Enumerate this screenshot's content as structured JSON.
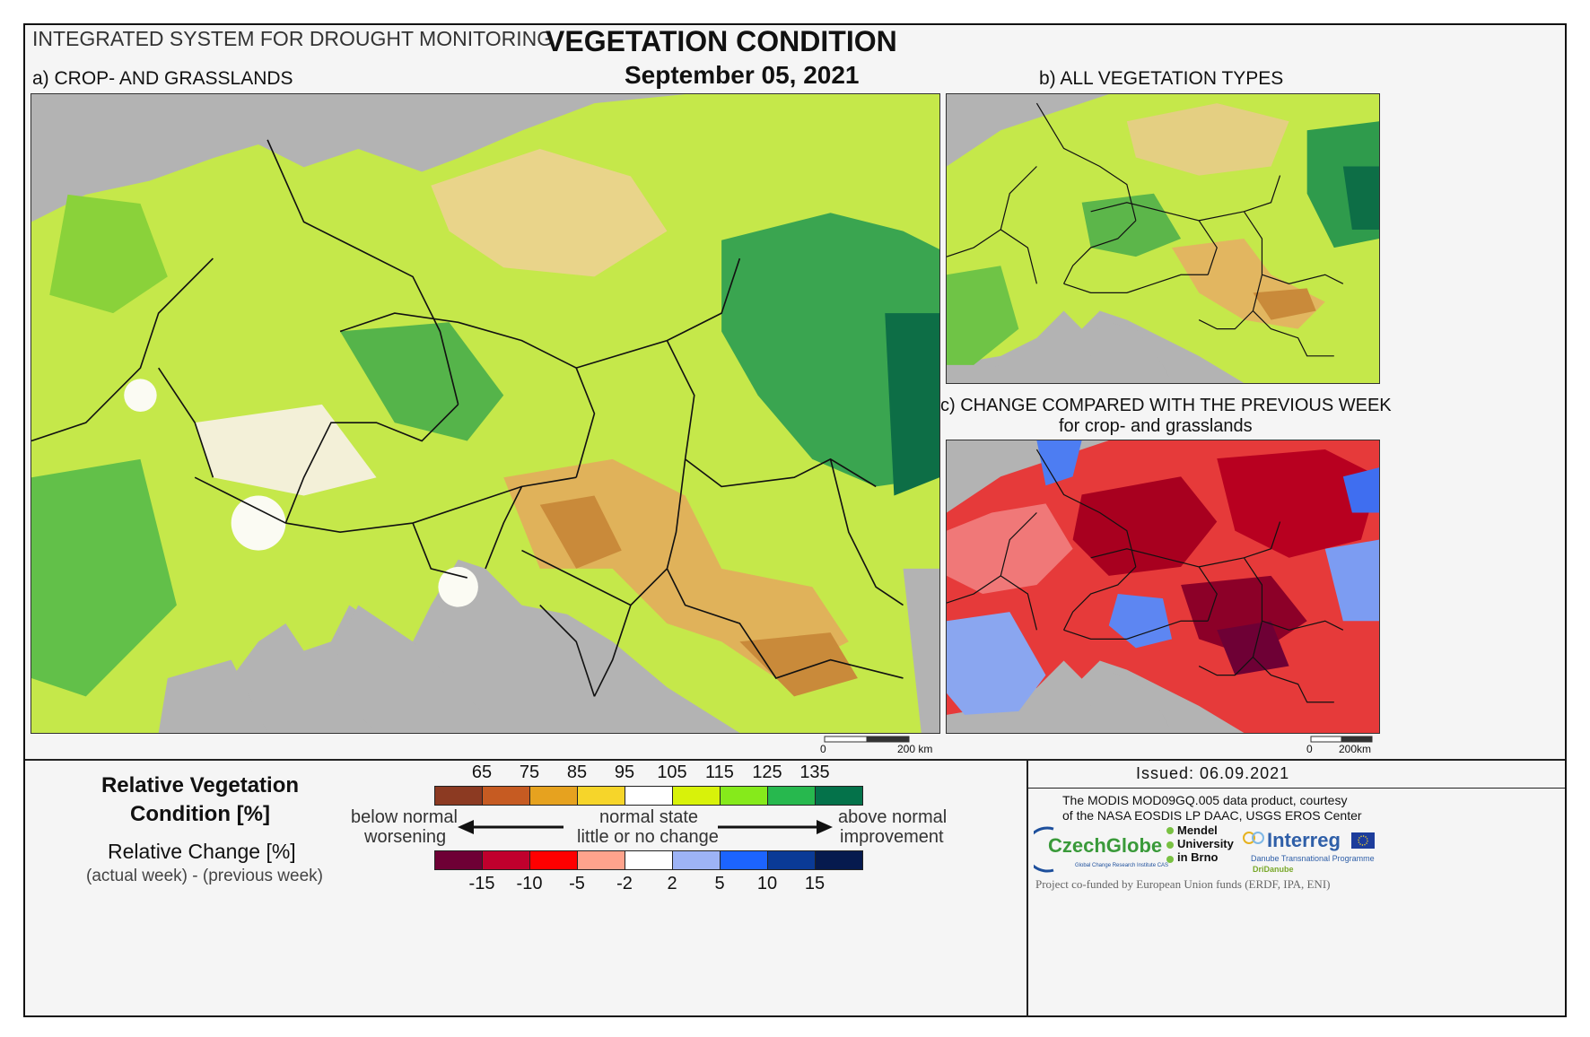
{
  "header": {
    "system": "INTEGRATED SYSTEM FOR DROUGHT MONITORING",
    "title": "VEGETATION CONDITION",
    "date": "September 05, 2021"
  },
  "panels": {
    "a": "a) CROP- AND GRASSLANDS",
    "b": "b) ALL VEGETATION TYPES",
    "c_line1": "c) CHANGE COMPARED WITH THE PREVIOUS WEEK",
    "c_line2": "for crop- and grasslands"
  },
  "scalebar": {
    "main_start": "0",
    "main_end": "200 km",
    "small_start": "0",
    "small_end": "200km"
  },
  "legend": {
    "rvc_title": "Relative Vegetation Condition [%]",
    "rc_title": "Relative Change [%]",
    "rc_subtitle": "(actual week) - (previous week)",
    "left_line1": "below normal",
    "left_line2": "worsening",
    "center_line1": "normal state",
    "center_line2": "little or no change",
    "right_line1": "above normal",
    "right_line2": "improvement",
    "condition_ticks": [
      "65",
      "75",
      "85",
      "95",
      "105",
      "115",
      "125",
      "135"
    ],
    "condition_colors": [
      "#8c3a22",
      "#c65b22",
      "#e6a21f",
      "#f6d52a",
      "#ffffff",
      "#d8f20a",
      "#86ea1b",
      "#27b84e",
      "#04724a"
    ],
    "change_ticks": [
      "-15",
      "-10",
      "-5",
      "-2",
      "2",
      "5",
      "10",
      "15"
    ],
    "change_colors": [
      "#6e0035",
      "#c0002d",
      "#ff0000",
      "#ffa38c",
      "#ffffff",
      "#9db3f5",
      "#1c64ff",
      "#0a3a96",
      "#061a4e"
    ]
  },
  "issued": "Issued: 06.09.2021",
  "credits": {
    "line1": "The MODIS MOD09GQ.005 data product, courtesy",
    "line2": "of the NASA EOSDIS LP DAAC, USGS EROS Center",
    "czechglobe": "CzechGlobe",
    "czechglobe_sub": "Global Change Research Institute CAS",
    "mendel": "Mendel University in Brno",
    "interreg": "Interreg",
    "interreg_sub1": "Danube Transnational Programme",
    "interreg_sub2": "DriDanube",
    "footer": "Project co-funded by European Union funds (ERDF, IPA, ENI)"
  }
}
